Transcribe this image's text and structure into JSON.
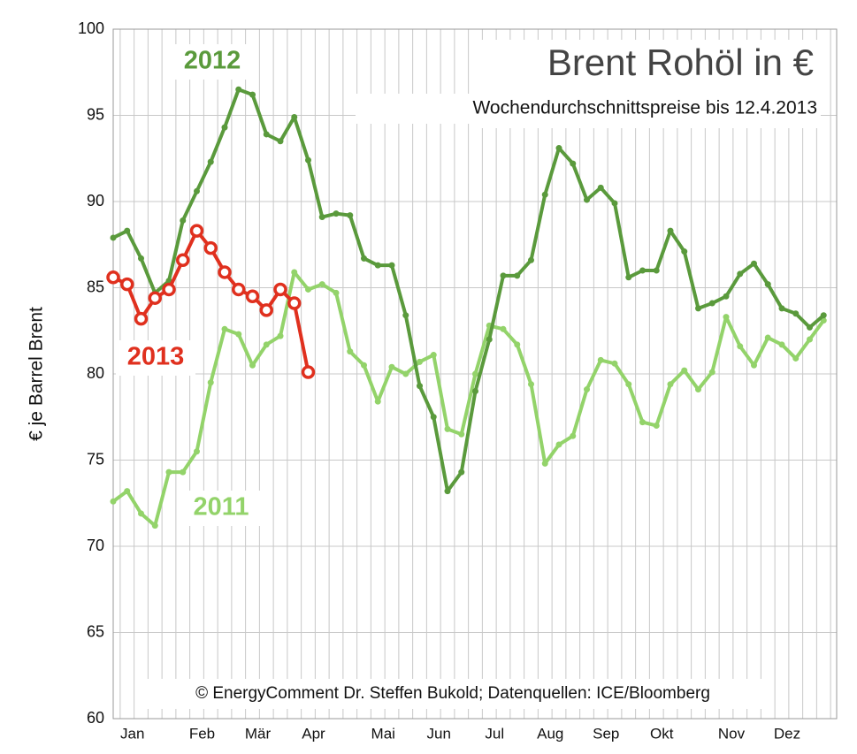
{
  "chart_data": {
    "type": "line",
    "title": "Brent Rohöl in €",
    "subtitle": "Wochendurchschnittspreise bis 12.4.2013",
    "y_label": "€ je Barrel Brent",
    "credit": "© EnergyComment Dr. Steffen Bukold; Datenquellen: ICE/Bloomberg",
    "categories": [
      null,
      "Jan",
      null,
      null,
      null,
      null,
      "Feb",
      null,
      null,
      null,
      "Mär",
      null,
      null,
      null,
      "Apr",
      null,
      null,
      null,
      null,
      "Mai",
      null,
      null,
      null,
      "Jun",
      null,
      null,
      null,
      "Jul",
      null,
      null,
      null,
      "Aug",
      null,
      null,
      null,
      "Sep",
      null,
      null,
      null,
      "Okt",
      null,
      null,
      null,
      null,
      "Nov",
      null,
      null,
      null,
      "Dez",
      null,
      null,
      null
    ],
    "ylim": [
      60,
      100
    ],
    "yticks": [
      60,
      65,
      70,
      75,
      80,
      85,
      90,
      95,
      100
    ],
    "grid": true,
    "series": [
      {
        "name": "2011",
        "color": "#93d36a",
        "values": [
          72.6,
          73.2,
          71.9,
          71.2,
          74.3,
          74.3,
          75.5,
          79.5,
          82.6,
          82.3,
          80.5,
          81.7,
          82.2,
          85.9,
          84.9,
          85.2,
          84.7,
          81.3,
          80.5,
          78.4,
          80.4,
          80.0,
          80.7,
          81.1,
          76.8,
          76.5,
          80.0,
          82.8,
          82.6,
          81.7,
          79.4,
          74.8,
          75.9,
          76.4,
          79.1,
          80.8,
          80.6,
          79.4,
          77.2,
          77.0,
          79.4,
          80.2,
          79.1,
          80.1,
          83.3,
          81.6,
          80.5,
          82.1,
          81.7,
          80.9,
          82.0,
          83.1
        ]
      },
      {
        "name": "2012",
        "color": "#5a9a3c",
        "values": [
          87.9,
          88.3,
          86.7,
          84.7,
          85.4,
          88.9,
          90.6,
          92.3,
          94.3,
          96.5,
          96.2,
          93.9,
          93.5,
          94.9,
          92.4,
          89.1,
          89.3,
          89.2,
          86.7,
          86.3,
          86.3,
          83.4,
          79.3,
          77.5,
          73.2,
          74.3,
          79.0,
          82.0,
          85.7,
          85.7,
          86.6,
          90.4,
          93.1,
          92.2,
          90.1,
          90.8,
          89.9,
          85.6,
          86.0,
          86.0,
          88.3,
          87.1,
          83.8,
          84.1,
          84.5,
          85.8,
          86.4,
          85.2,
          83.8,
          83.5,
          82.7,
          83.4
        ]
      },
      {
        "name": "2013",
        "color": "#e0301e",
        "values": [
          85.6,
          85.2,
          83.2,
          84.4,
          84.9,
          86.6,
          88.3,
          87.3,
          85.9,
          84.9,
          84.5,
          83.7,
          84.9,
          84.1,
          80.1,
          null,
          null,
          null,
          null,
          null,
          null,
          null,
          null,
          null,
          null,
          null,
          null,
          null,
          null,
          null,
          null,
          null,
          null,
          null,
          null,
          null,
          null,
          null,
          null,
          null,
          null,
          null,
          null,
          null,
          null,
          null,
          null,
          null,
          null,
          null,
          null,
          null
        ]
      }
    ]
  }
}
